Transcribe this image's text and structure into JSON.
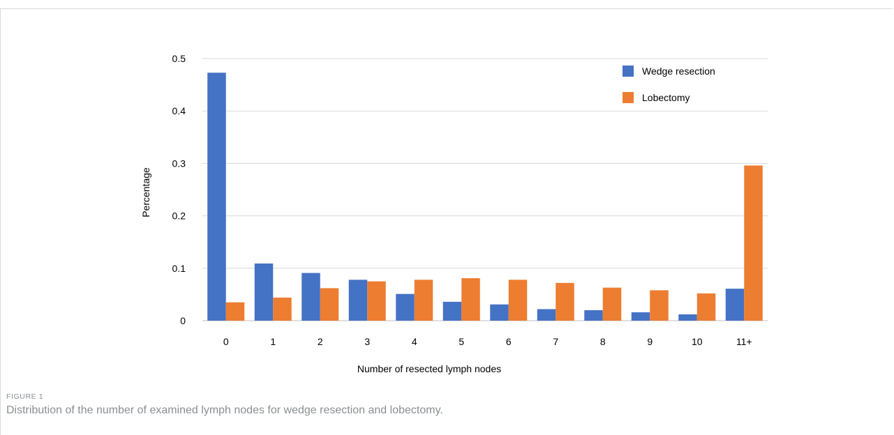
{
  "figure": {
    "label": "FIGURE 1",
    "caption": "Distribution of the number of examined lymph nodes for wedge resection and lobectomy."
  },
  "chart_data": {
    "type": "bar",
    "title": "",
    "xlabel": "Number of  resected lymph nodes",
    "ylabel": "Percentage",
    "ylim": [
      0,
      0.5
    ],
    "yticks": [
      "0",
      "0.1",
      "0.2",
      "0.3",
      "0.4",
      "0.5"
    ],
    "yticks_values": [
      0,
      0.1,
      0.2,
      0.3,
      0.4,
      0.5
    ],
    "grid": true,
    "legend_position": "top-right",
    "categories": [
      "0",
      "1",
      "2",
      "3",
      "4",
      "5",
      "6",
      "7",
      "8",
      "9",
      "10",
      "11+"
    ],
    "series": [
      {
        "name": "Wedge resection",
        "color": "#4472c4",
        "values": [
          0.473,
          0.109,
          0.091,
          0.078,
          0.051,
          0.036,
          0.031,
          0.022,
          0.02,
          0.016,
          0.012,
          0.061
        ]
      },
      {
        "name": "Lobectomy",
        "color": "#ed7d31",
        "values": [
          0.035,
          0.044,
          0.062,
          0.075,
          0.078,
          0.081,
          0.078,
          0.072,
          0.063,
          0.058,
          0.052,
          0.296
        ]
      }
    ]
  }
}
